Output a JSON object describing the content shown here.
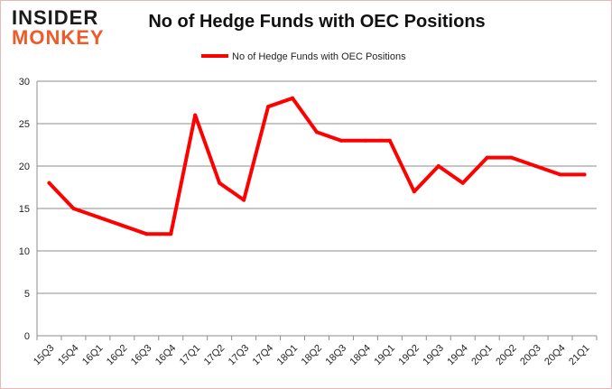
{
  "logo": {
    "line1": "INSIDER",
    "line2": "MONKEY"
  },
  "chart_data": {
    "type": "line",
    "title": "No of Hedge Funds with OEC Positions",
    "xlabel": "",
    "ylabel": "",
    "categories": [
      "15Q3",
      "15Q4",
      "16Q1",
      "16Q2",
      "16Q3",
      "16Q4",
      "17Q1",
      "17Q2",
      "17Q3",
      "17Q4",
      "18Q1",
      "18Q2",
      "18Q3",
      "18Q4",
      "19Q1",
      "19Q2",
      "19Q3",
      "19Q4",
      "20Q1",
      "20Q2",
      "20Q3",
      "20Q4",
      "21Q1"
    ],
    "series": [
      {
        "name": "No of Hedge Funds with OEC Positions",
        "color": "#ff0000",
        "values": [
          18,
          15,
          14,
          13,
          12,
          12,
          26,
          18,
          16,
          27,
          28,
          24,
          23,
          23,
          23,
          17,
          20,
          18,
          21,
          21,
          20,
          19,
          19
        ]
      }
    ],
    "ylim": [
      0,
      30
    ],
    "yticks": [
      0,
      5,
      10,
      15,
      20,
      25,
      30
    ],
    "grid": true,
    "legend": "top-center"
  }
}
